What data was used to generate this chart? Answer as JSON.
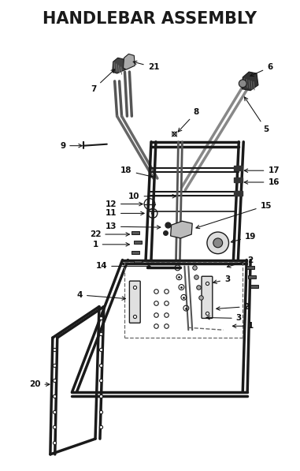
{
  "title": "HANDLEBAR ASSEMBLY",
  "title_fontsize": 15,
  "title_fontweight": "black",
  "bg_color": "#ffffff",
  "line_color": "#1a1a1a",
  "dark_color": "#222222",
  "gray_color": "#888888",
  "light_gray": "#cccccc",
  "label_fontsize": 7.5
}
